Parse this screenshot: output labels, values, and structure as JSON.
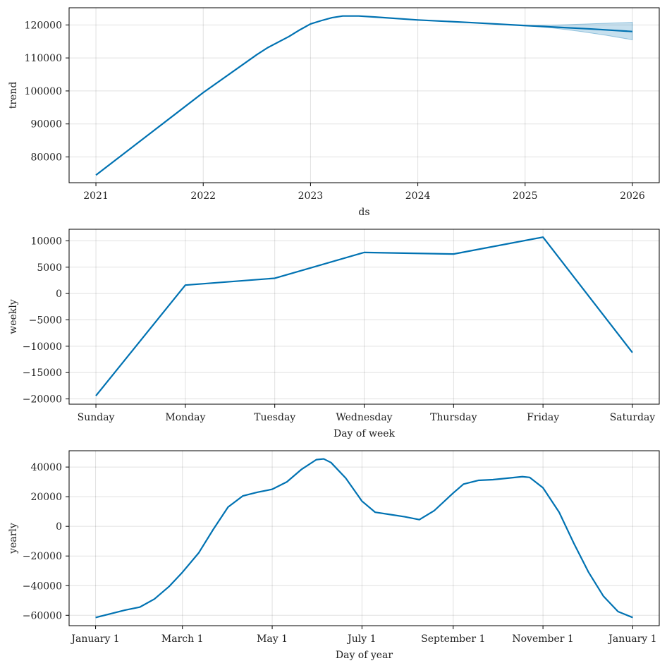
{
  "colors": {
    "line": "#0072B2",
    "band": "#0072B2",
    "grid": "#000000",
    "axis": "#000000",
    "text": "#222222"
  },
  "chart_data": [
    {
      "type": "line",
      "title": "",
      "xlabel": "ds",
      "ylabel": "trend",
      "xlim": [
        2020.75,
        2026.25
      ],
      "ylim": [
        72200,
        125200
      ],
      "x_ticks": [
        2021,
        2022,
        2023,
        2024,
        2025,
        2026
      ],
      "x_tick_labels": [
        "2021",
        "2022",
        "2023",
        "2024",
        "2025",
        "2026"
      ],
      "y_ticks": [
        80000,
        90000,
        100000,
        110000,
        120000
      ],
      "y_tick_labels": [
        "80000",
        "90000",
        "100000",
        "110000",
        "120000"
      ],
      "grid": true,
      "series": [
        {
          "x": [
            2021.0,
            2021.5,
            2022.0,
            2022.5,
            2022.6,
            2022.8,
            2022.9,
            2023.0,
            2023.1,
            2023.2,
            2023.3,
            2023.45,
            2023.6,
            2024.0,
            2024.5,
            2025.0,
            2025.3,
            2025.6,
            2026.0
          ],
          "y": [
            74500,
            87000,
            99500,
            111000,
            113100,
            116500,
            118500,
            120300,
            121300,
            122200,
            122700,
            122700,
            122400,
            121500,
            120700,
            119800,
            119300,
            118800,
            118000
          ]
        }
      ],
      "uncertainty_band": {
        "x": [
          2025.0,
          2025.25,
          2025.5,
          2025.75,
          2026.0
        ],
        "lower": [
          119800,
          119100,
          118100,
          116900,
          115500
        ],
        "upper": [
          119800,
          119900,
          120200,
          120500,
          120800
        ]
      }
    },
    {
      "type": "line",
      "title": "",
      "xlabel": "Day of week",
      "ylabel": "weekly",
      "xlim": [
        -0.3,
        6.3
      ],
      "ylim": [
        -21000,
        12200
      ],
      "categories": [
        "Sunday",
        "Monday",
        "Tuesday",
        "Wednesday",
        "Thursday",
        "Friday",
        "Saturday"
      ],
      "x_ticks": [
        0,
        1,
        2,
        3,
        4,
        5,
        6
      ],
      "y_ticks": [
        -20000,
        -15000,
        -10000,
        -5000,
        0,
        5000,
        10000
      ],
      "y_tick_labels": [
        "−20000",
        "−15000",
        "−10000",
        "−5000",
        "0",
        "5000",
        "10000"
      ],
      "grid": true,
      "series": [
        {
          "x": [
            0,
            1,
            2,
            3,
            4,
            5,
            6
          ],
          "y": [
            -19400,
            1600,
            2900,
            7800,
            7500,
            10700,
            -11200
          ]
        }
      ]
    },
    {
      "type": "line",
      "title": "",
      "xlabel": "Day of year",
      "ylabel": "yearly",
      "xlim": [
        -18,
        383
      ],
      "ylim": [
        -67000,
        51000
      ],
      "x_ticks": [
        0,
        59,
        120,
        181,
        243,
        304,
        365
      ],
      "x_tick_labels": [
        "January 1",
        "March 1",
        "May 1",
        "July 1",
        "September 1",
        "November 1",
        "January 1"
      ],
      "y_ticks": [
        -60000,
        -40000,
        -20000,
        0,
        20000,
        40000
      ],
      "y_tick_labels": [
        "−60000",
        "−40000",
        "−20000",
        "0",
        "20000",
        "40000"
      ],
      "grid": true,
      "series": [
        {
          "x": [
            0,
            10,
            20,
            30,
            40,
            50,
            59,
            70,
            80,
            90,
            100,
            110,
            120,
            130,
            140,
            150,
            155,
            160,
            170,
            181,
            190,
            200,
            210,
            220,
            230,
            243,
            250,
            260,
            270,
            280,
            290,
            295,
            304,
            315,
            325,
            335,
            345,
            355,
            365
          ],
          "y": [
            -61500,
            -59000,
            -56500,
            -54500,
            -49000,
            -40500,
            -31000,
            -18000,
            -2000,
            13000,
            20500,
            23000,
            25000,
            30000,
            38500,
            45000,
            45500,
            43000,
            32500,
            17000,
            9500,
            8000,
            6500,
            4500,
            10500,
            22500,
            28500,
            31000,
            31500,
            32500,
            33500,
            33000,
            26000,
            9500,
            -11500,
            -31000,
            -47000,
            -57500,
            -61500
          ]
        }
      ]
    }
  ]
}
